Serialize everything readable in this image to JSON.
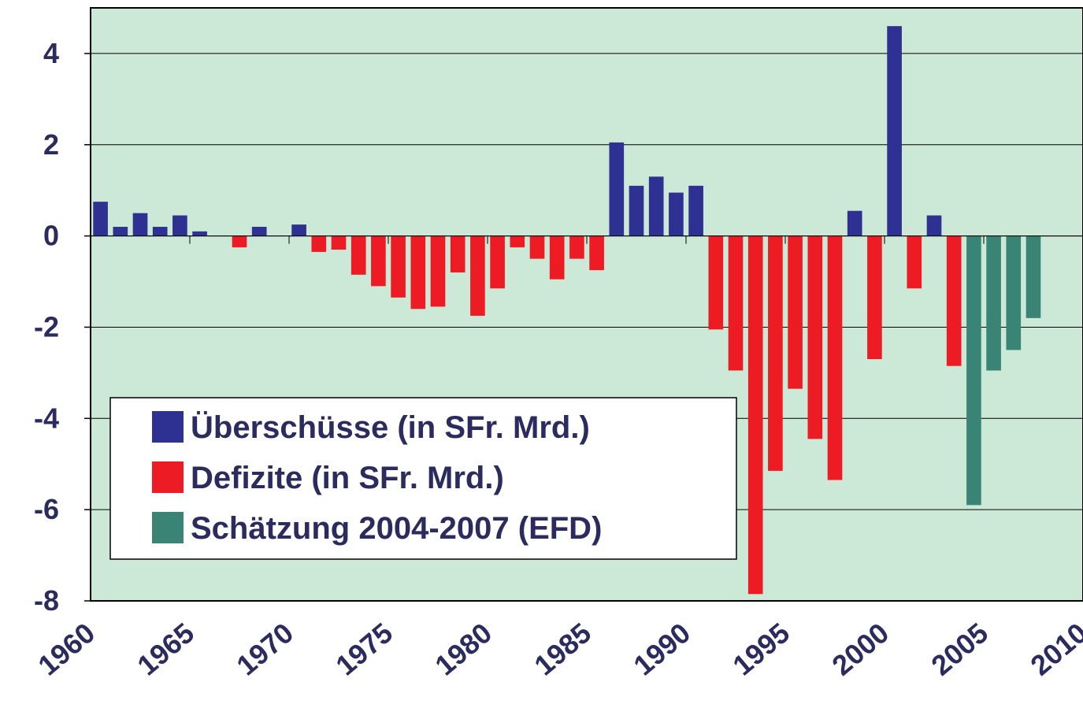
{
  "chart_data": {
    "type": "bar",
    "x": [
      1960,
      1961,
      1962,
      1963,
      1964,
      1965,
      1966,
      1967,
      1968,
      1969,
      1970,
      1971,
      1972,
      1973,
      1974,
      1975,
      1976,
      1977,
      1978,
      1979,
      1980,
      1981,
      1982,
      1983,
      1984,
      1985,
      1986,
      1987,
      1988,
      1989,
      1990,
      1991,
      1992,
      1993,
      1994,
      1995,
      1996,
      1997,
      1998,
      1999,
      2000,
      2001,
      2002,
      2003,
      2004,
      2005,
      2006,
      2007
    ],
    "series": [
      {
        "name": "Überschüsse (in SFr. Mrd.)",
        "color": "#2e3192",
        "values": [
          0.75,
          0.2,
          0.5,
          0.2,
          0.45,
          0.1,
          null,
          null,
          0.2,
          null,
          0.25,
          null,
          null,
          null,
          null,
          null,
          null,
          null,
          null,
          null,
          null,
          null,
          null,
          null,
          null,
          null,
          2.05,
          1.1,
          1.3,
          0.95,
          1.1,
          null,
          null,
          null,
          null,
          null,
          null,
          null,
          0.55,
          null,
          4.6,
          null,
          0.45,
          null,
          null,
          null,
          null,
          null
        ]
      },
      {
        "name": "Defizite (in SFr. Mrd.)",
        "color": "#ed1c24",
        "values": [
          null,
          null,
          null,
          null,
          null,
          null,
          null,
          -0.25,
          null,
          null,
          null,
          -0.35,
          -0.3,
          -0.85,
          -1.1,
          -1.35,
          -1.6,
          -1.55,
          -0.8,
          -1.75,
          -1.15,
          -0.25,
          -0.5,
          -0.95,
          -0.5,
          -0.75,
          null,
          null,
          null,
          null,
          null,
          -2.05,
          -2.95,
          -7.85,
          -5.15,
          -3.35,
          -4.45,
          -5.35,
          null,
          -2.7,
          null,
          -1.15,
          null,
          -2.85,
          null,
          null,
          null,
          null
        ]
      },
      {
        "name": "Schätzung 2004-2007 (EFD)",
        "color": "#3a8476",
        "values": [
          null,
          null,
          null,
          null,
          null,
          null,
          null,
          null,
          null,
          null,
          null,
          null,
          null,
          null,
          null,
          null,
          null,
          null,
          null,
          null,
          null,
          null,
          null,
          null,
          null,
          null,
          null,
          null,
          null,
          null,
          null,
          null,
          null,
          null,
          null,
          null,
          null,
          null,
          null,
          null,
          null,
          null,
          null,
          null,
          -5.9,
          -2.95,
          -2.5,
          -1.8
        ]
      }
    ],
    "xlim": [
      1960,
      2010
    ],
    "xticks": [
      1960,
      1965,
      1970,
      1975,
      1980,
      1985,
      1990,
      1995,
      2000,
      2005,
      2010
    ],
    "ylim": [
      -8,
      5
    ],
    "yticks": [
      -8,
      -6,
      -4,
      -2,
      0,
      2,
      4
    ],
    "grid": true,
    "background": "#cce8d7",
    "legend": "lower left"
  }
}
